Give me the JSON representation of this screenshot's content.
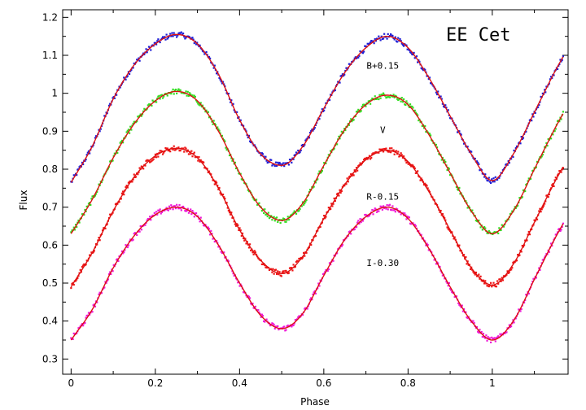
{
  "chart_data": {
    "type": "scatter",
    "title": "EE Cet",
    "xlabel": "Phase",
    "ylabel": "Flux",
    "xlim": [
      -0.02,
      1.18
    ],
    "ylim": [
      0.26,
      1.22
    ],
    "grid": false,
    "x_ticks": [
      {
        "value": 0,
        "label": "0"
      },
      {
        "value": 0.2,
        "label": "0.2"
      },
      {
        "value": 0.4,
        "label": "0.4"
      },
      {
        "value": 0.6,
        "label": "0.6"
      },
      {
        "value": 0.8,
        "label": "0.8"
      },
      {
        "value": 1.0,
        "label": "1"
      }
    ],
    "y_ticks": [
      {
        "value": 0.3,
        "label": "0.3"
      },
      {
        "value": 0.4,
        "label": "0.4"
      },
      {
        "value": 0.5,
        "label": "0.5"
      },
      {
        "value": 0.6,
        "label": "0.6"
      },
      {
        "value": 0.7,
        "label": "0.7"
      },
      {
        "value": 0.8,
        "label": "0.8"
      },
      {
        "value": 0.9,
        "label": "0.9"
      },
      {
        "value": 1.0,
        "label": "1"
      },
      {
        "value": 1.1,
        "label": "1.1"
      },
      {
        "value": 1.2,
        "label": "1.2"
      }
    ],
    "model_color": "#dd1111",
    "series": [
      {
        "name": "B+0.15",
        "color": "#1f1fd6",
        "label_at": [
          0.74,
          1.065
        ],
        "points": [
          [
            0.0,
            0.765
          ],
          [
            0.05,
            0.86
          ],
          [
            0.1,
            0.985
          ],
          [
            0.15,
            1.075
          ],
          [
            0.2,
            1.13
          ],
          [
            0.25,
            1.155
          ],
          [
            0.3,
            1.13
          ],
          [
            0.35,
            1.05
          ],
          [
            0.4,
            0.93
          ],
          [
            0.45,
            0.84
          ],
          [
            0.5,
            0.81
          ],
          [
            0.55,
            0.86
          ],
          [
            0.6,
            0.96
          ],
          [
            0.65,
            1.055
          ],
          [
            0.7,
            1.12
          ],
          [
            0.75,
            1.15
          ],
          [
            0.8,
            1.12
          ],
          [
            0.85,
            1.04
          ],
          [
            0.9,
            0.94
          ],
          [
            0.95,
            0.84
          ],
          [
            1.0,
            0.77
          ],
          [
            1.05,
            0.84
          ],
          [
            1.1,
            0.95
          ],
          [
            1.15,
            1.06
          ],
          [
            1.17,
            1.1
          ]
        ]
      },
      {
        "name": "V",
        "color": "#33dd22",
        "label_at": [
          0.74,
          0.895
        ],
        "points": [
          [
            0.0,
            0.63
          ],
          [
            0.05,
            0.72
          ],
          [
            0.1,
            0.83
          ],
          [
            0.15,
            0.92
          ],
          [
            0.2,
            0.98
          ],
          [
            0.25,
            1.005
          ],
          [
            0.3,
            0.98
          ],
          [
            0.35,
            0.9
          ],
          [
            0.4,
            0.79
          ],
          [
            0.45,
            0.7
          ],
          [
            0.5,
            0.665
          ],
          [
            0.55,
            0.71
          ],
          [
            0.6,
            0.81
          ],
          [
            0.65,
            0.905
          ],
          [
            0.7,
            0.97
          ],
          [
            0.75,
            0.995
          ],
          [
            0.8,
            0.97
          ],
          [
            0.85,
            0.89
          ],
          [
            0.9,
            0.79
          ],
          [
            0.95,
            0.69
          ],
          [
            1.0,
            0.63
          ],
          [
            1.05,
            0.69
          ],
          [
            1.1,
            0.8
          ],
          [
            1.15,
            0.91
          ],
          [
            1.17,
            0.95
          ]
        ]
      },
      {
        "name": "R-0.15",
        "color": "#ee1515",
        "label_at": [
          0.74,
          0.72
        ],
        "points": [
          [
            0.0,
            0.49
          ],
          [
            0.05,
            0.58
          ],
          [
            0.1,
            0.69
          ],
          [
            0.15,
            0.78
          ],
          [
            0.2,
            0.835
          ],
          [
            0.25,
            0.855
          ],
          [
            0.3,
            0.83
          ],
          [
            0.35,
            0.75
          ],
          [
            0.4,
            0.64
          ],
          [
            0.45,
            0.56
          ],
          [
            0.5,
            0.525
          ],
          [
            0.55,
            0.57
          ],
          [
            0.6,
            0.67
          ],
          [
            0.65,
            0.76
          ],
          [
            0.7,
            0.825
          ],
          [
            0.75,
            0.85
          ],
          [
            0.8,
            0.82
          ],
          [
            0.85,
            0.74
          ],
          [
            0.9,
            0.64
          ],
          [
            0.95,
            0.54
          ],
          [
            1.0,
            0.495
          ],
          [
            1.05,
            0.55
          ],
          [
            1.1,
            0.66
          ],
          [
            1.15,
            0.77
          ],
          [
            1.17,
            0.81
          ]
        ]
      },
      {
        "name": "I-0.30",
        "color": "#ee18d8",
        "label_at": [
          0.74,
          0.545
        ],
        "points": [
          [
            0.0,
            0.35
          ],
          [
            0.05,
            0.43
          ],
          [
            0.1,
            0.54
          ],
          [
            0.15,
            0.625
          ],
          [
            0.2,
            0.68
          ],
          [
            0.25,
            0.7
          ],
          [
            0.3,
            0.675
          ],
          [
            0.35,
            0.6
          ],
          [
            0.4,
            0.5
          ],
          [
            0.45,
            0.415
          ],
          [
            0.5,
            0.38
          ],
          [
            0.55,
            0.42
          ],
          [
            0.6,
            0.52
          ],
          [
            0.65,
            0.615
          ],
          [
            0.7,
            0.675
          ],
          [
            0.75,
            0.7
          ],
          [
            0.8,
            0.67
          ],
          [
            0.85,
            0.59
          ],
          [
            0.9,
            0.49
          ],
          [
            0.95,
            0.4
          ],
          [
            1.0,
            0.35
          ],
          [
            1.05,
            0.4
          ],
          [
            1.1,
            0.51
          ],
          [
            1.15,
            0.62
          ],
          [
            1.17,
            0.66
          ]
        ]
      }
    ]
  }
}
